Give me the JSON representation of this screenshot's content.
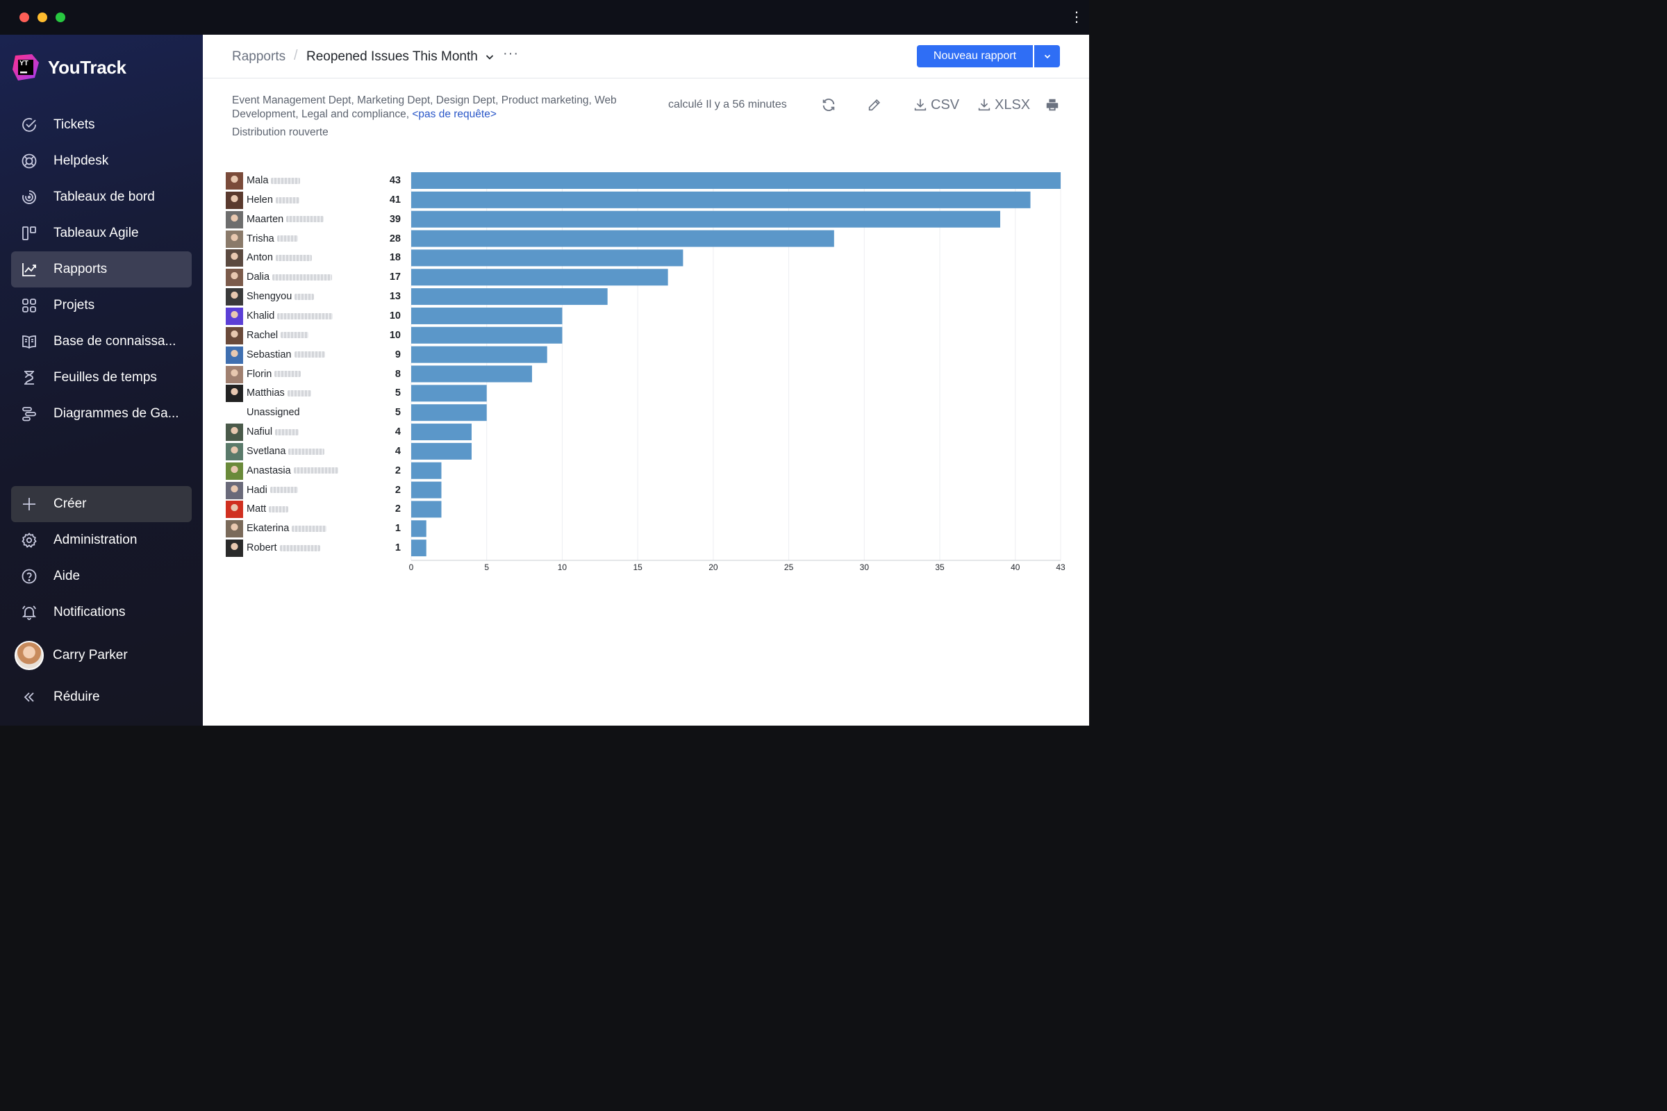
{
  "window": {
    "menu_icon": "kebab-icon"
  },
  "sidebar": {
    "logo_text": "YouTrack",
    "logo_badge": "YT",
    "items": [
      {
        "label": "Tickets",
        "icon": "check-circle-icon"
      },
      {
        "label": "Helpdesk",
        "icon": "lifebuoy-icon"
      },
      {
        "label": "Tableaux de bord",
        "icon": "dashboard-icon"
      },
      {
        "label": "Tableaux Agile",
        "icon": "agile-board-icon"
      },
      {
        "label": "Rapports",
        "icon": "reports-icon",
        "active": true
      },
      {
        "label": "Projets",
        "icon": "projects-grid-icon"
      },
      {
        "label": "Base de connaissa...",
        "icon": "book-icon"
      },
      {
        "label": "Feuilles de temps",
        "icon": "hourglass-icon"
      },
      {
        "label": "Diagrammes de Ga...",
        "icon": "gantt-icon"
      }
    ],
    "bottom": [
      {
        "label": "Créer",
        "icon": "plus-icon"
      },
      {
        "label": "Administration",
        "icon": "gear-icon"
      },
      {
        "label": "Aide",
        "icon": "help-icon"
      },
      {
        "label": "Notifications",
        "icon": "bell-icon"
      }
    ],
    "user_name": "Carry Parker",
    "collapse_label": "Réduire"
  },
  "header": {
    "breadcrumb_root": "Rapports",
    "breadcrumb_separator": "/",
    "report_title": "Reopened Issues This Month",
    "more_label": "···",
    "new_report_label": "Nouveau rapport"
  },
  "report": {
    "projects_text": "Event Management Dept, Marketing Dept, Design Dept, Product marketing, Web Development, Legal and compliance, ",
    "query_link": "<pas de requête>",
    "subtitle": "Distribution rouverte",
    "calculated": "calculé Il y a 56 minutes",
    "csv_label": "CSV",
    "xlsx_label": "XLSX"
  },
  "chart_data": {
    "type": "bar",
    "orientation": "horizontal",
    "grid": true,
    "xlim": [
      0,
      43
    ],
    "x_ticks": [
      0,
      5,
      10,
      15,
      20,
      25,
      30,
      35,
      40,
      43
    ],
    "bar_color": "#5b97c9",
    "categories": [
      "Mala",
      "Helen",
      "Maarten",
      "Trisha",
      "Anton",
      "Dalia",
      "Shengyou",
      "Khalid",
      "Rachel",
      "Sebastian",
      "Florin",
      "Matthias",
      "Unassigned",
      "Nafiul",
      "Svetlana",
      "Anastasia",
      "Hadi",
      "Matt",
      "Ekaterina",
      "Robert"
    ],
    "values": [
      43,
      41,
      39,
      28,
      18,
      17,
      13,
      10,
      10,
      9,
      8,
      5,
      5,
      4,
      4,
      2,
      2,
      2,
      1,
      1
    ]
  }
}
